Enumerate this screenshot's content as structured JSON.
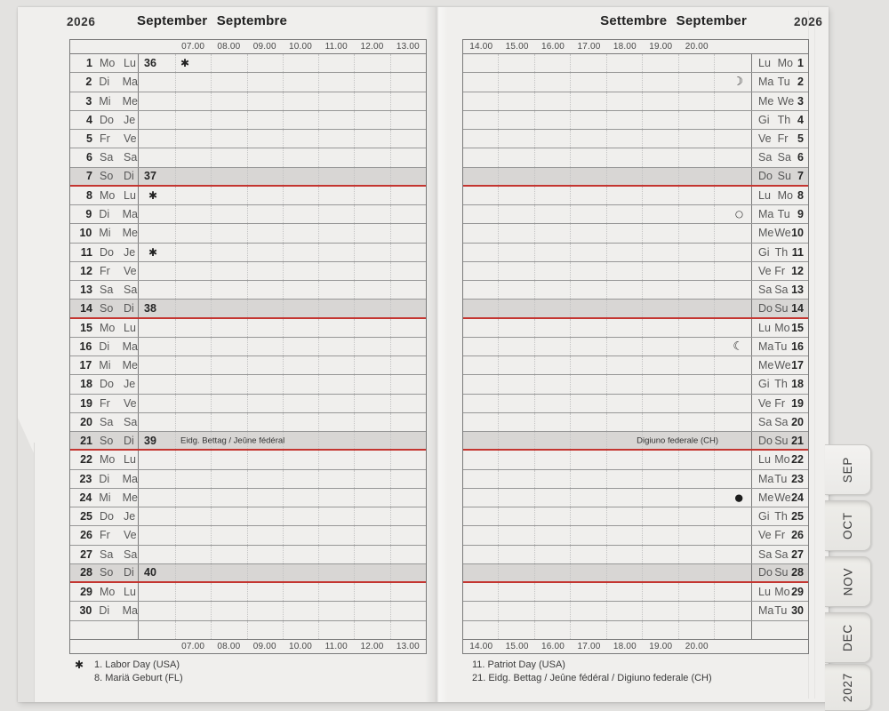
{
  "colors": {
    "accent_red": "#c43530",
    "sunday_fill": "#d8d6d4",
    "page": "#f0efed",
    "background": "#e3e2e0"
  },
  "left_page": {
    "year": "2026",
    "title": "September Septembre",
    "time_labels": [
      "07.00",
      "08.00",
      "09.00",
      "10.00",
      "11.00",
      "12.00",
      "13.00"
    ],
    "footnote_marker": "✱",
    "footnotes": [
      "1. Labor Day (USA)",
      "8. Mariä Geburt (FL)"
    ],
    "rows": [
      {
        "d": "1",
        "a": "Mo",
        "b": "Lu",
        "w": "36",
        "sym": "✱"
      },
      {
        "d": "2",
        "a": "Di",
        "b": "Ma"
      },
      {
        "d": "3",
        "a": "Mi",
        "b": "Me"
      },
      {
        "d": "4",
        "a": "Do",
        "b": "Je"
      },
      {
        "d": "5",
        "a": "Fr",
        "b": "Ve"
      },
      {
        "d": "6",
        "a": "Sa",
        "b": "Sa"
      },
      {
        "d": "7",
        "a": "So",
        "b": "Di",
        "w": "37",
        "s": true
      },
      {
        "d": "8",
        "a": "Mo",
        "b": "Lu",
        "sym": "✱"
      },
      {
        "d": "9",
        "a": "Di",
        "b": "Ma"
      },
      {
        "d": "10",
        "a": "Mi",
        "b": "Me"
      },
      {
        "d": "11",
        "a": "Do",
        "b": "Je",
        "sym": "✱"
      },
      {
        "d": "12",
        "a": "Fr",
        "b": "Ve"
      },
      {
        "d": "13",
        "a": "Sa",
        "b": "Sa"
      },
      {
        "d": "14",
        "a": "So",
        "b": "Di",
        "w": "38",
        "s": true
      },
      {
        "d": "15",
        "a": "Mo",
        "b": "Lu"
      },
      {
        "d": "16",
        "a": "Di",
        "b": "Ma"
      },
      {
        "d": "17",
        "a": "Mi",
        "b": "Me"
      },
      {
        "d": "18",
        "a": "Do",
        "b": "Je"
      },
      {
        "d": "19",
        "a": "Fr",
        "b": "Ve"
      },
      {
        "d": "20",
        "a": "Sa",
        "b": "Sa"
      },
      {
        "d": "21",
        "a": "So",
        "b": "Di",
        "w": "39",
        "s": true,
        "note": "Eidg. Bettag / Jeûne fédéral"
      },
      {
        "d": "22",
        "a": "Mo",
        "b": "Lu"
      },
      {
        "d": "23",
        "a": "Di",
        "b": "Ma"
      },
      {
        "d": "24",
        "a": "Mi",
        "b": "Me"
      },
      {
        "d": "25",
        "a": "Do",
        "b": "Je"
      },
      {
        "d": "26",
        "a": "Fr",
        "b": "Ve"
      },
      {
        "d": "27",
        "a": "Sa",
        "b": "Sa"
      },
      {
        "d": "28",
        "a": "So",
        "b": "Di",
        "w": "40",
        "s": true
      },
      {
        "d": "29",
        "a": "Mo",
        "b": "Lu"
      },
      {
        "d": "30",
        "a": "Di",
        "b": "Ma"
      }
    ]
  },
  "right_page": {
    "year": "2026",
    "title": "Settembre September",
    "time_labels": [
      "14.00",
      "15.00",
      "16.00",
      "17.00",
      "18.00",
      "19.00",
      "20.00"
    ],
    "footnotes": [
      "11. Patriot Day (USA)",
      "21. Eidg. Bettag / Jeûne fédéral / Digiuno federale (CH)"
    ],
    "rows": [
      {
        "d": "1",
        "a": "Lu",
        "b": "Mo"
      },
      {
        "d": "2",
        "a": "Ma",
        "b": "Tu",
        "moon": "☽"
      },
      {
        "d": "3",
        "a": "Me",
        "b": "We"
      },
      {
        "d": "4",
        "a": "Gi",
        "b": "Th"
      },
      {
        "d": "5",
        "a": "Ve",
        "b": "Fr"
      },
      {
        "d": "6",
        "a": "Sa",
        "b": "Sa"
      },
      {
        "d": "7",
        "a": "Do",
        "b": "Su",
        "s": true
      },
      {
        "d": "8",
        "a": "Lu",
        "b": "Mo"
      },
      {
        "d": "9",
        "a": "Ma",
        "b": "Tu",
        "moon": "○"
      },
      {
        "d": "10",
        "a": "Me",
        "b": "We"
      },
      {
        "d": "11",
        "a": "Gi",
        "b": "Th"
      },
      {
        "d": "12",
        "a": "Ve",
        "b": "Fr"
      },
      {
        "d": "13",
        "a": "Sa",
        "b": "Sa"
      },
      {
        "d": "14",
        "a": "Do",
        "b": "Su",
        "s": true
      },
      {
        "d": "15",
        "a": "Lu",
        "b": "Mo"
      },
      {
        "d": "16",
        "a": "Ma",
        "b": "Tu",
        "moon": "☾"
      },
      {
        "d": "17",
        "a": "Me",
        "b": "We"
      },
      {
        "d": "18",
        "a": "Gi",
        "b": "Th"
      },
      {
        "d": "19",
        "a": "Ve",
        "b": "Fr"
      },
      {
        "d": "20",
        "a": "Sa",
        "b": "Sa"
      },
      {
        "d": "21",
        "a": "Do",
        "b": "Su",
        "s": true,
        "note": "Digiuno federale (CH)"
      },
      {
        "d": "22",
        "a": "Lu",
        "b": "Mo"
      },
      {
        "d": "23",
        "a": "Ma",
        "b": "Tu"
      },
      {
        "d": "24",
        "a": "Me",
        "b": "We",
        "moon": "●"
      },
      {
        "d": "25",
        "a": "Gi",
        "b": "Th"
      },
      {
        "d": "26",
        "a": "Ve",
        "b": "Fr"
      },
      {
        "d": "27",
        "a": "Sa",
        "b": "Sa"
      },
      {
        "d": "28",
        "a": "Do",
        "b": "Su",
        "s": true
      },
      {
        "d": "29",
        "a": "Lu",
        "b": "Mo"
      },
      {
        "d": "30",
        "a": "Ma",
        "b": "Tu"
      }
    ]
  },
  "tabs": [
    {
      "label": "SEP",
      "active": true
    },
    {
      "label": "OCT",
      "active": false
    },
    {
      "label": "NOV",
      "active": false
    },
    {
      "label": "DEC",
      "active": false
    },
    {
      "label": "2027",
      "active": false
    }
  ]
}
